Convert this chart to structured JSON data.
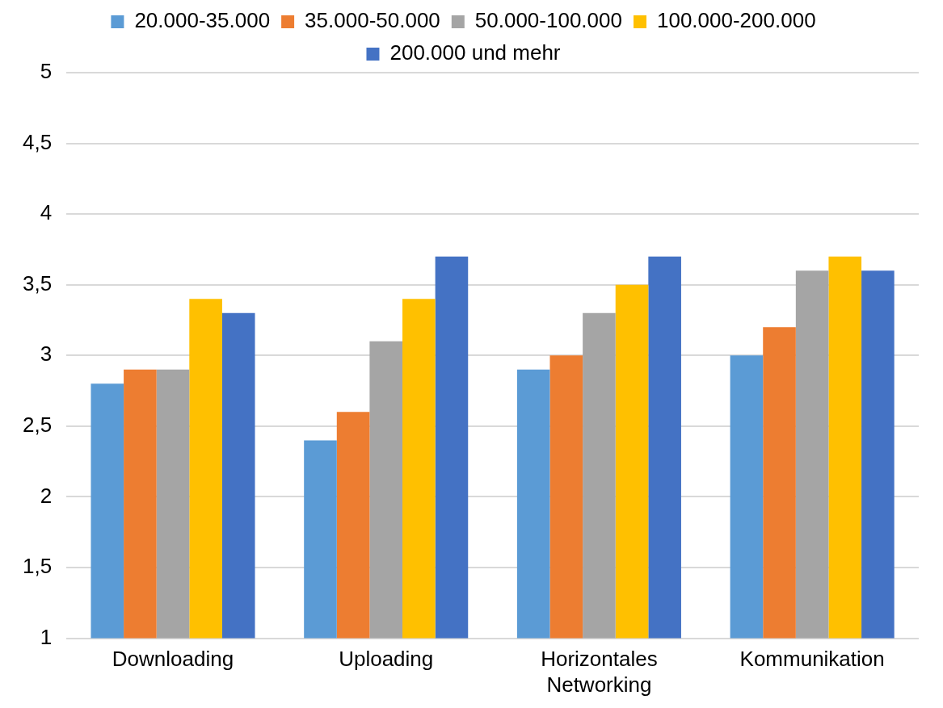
{
  "chart_data": {
    "type": "bar",
    "categories": [
      "Downloading",
      "Uploading",
      "Horizontales Networking",
      "Kommunikation"
    ],
    "series": [
      {
        "name": "20.000-35.000",
        "color": "#5b9bd5",
        "values": [
          2.8,
          2.4,
          2.9,
          3.0
        ]
      },
      {
        "name": "35.000-50.000",
        "color": "#ed7d31",
        "values": [
          2.9,
          2.6,
          3.0,
          3.2
        ]
      },
      {
        "name": "50.000-100.000",
        "color": "#a5a5a5",
        "values": [
          2.9,
          3.1,
          3.3,
          3.6
        ]
      },
      {
        "name": "100.000-200.000",
        "color": "#ffc000",
        "values": [
          3.4,
          3.4,
          3.5,
          3.7
        ]
      },
      {
        "name": "200.000 und mehr",
        "color": "#4472c4",
        "values": [
          3.3,
          3.7,
          3.7,
          3.6
        ]
      }
    ],
    "ylim": [
      1,
      5
    ],
    "yticks": [
      1,
      {
        "value": 1.5,
        "label": "1,5"
      },
      2,
      {
        "value": 2.5,
        "label": "2,5"
      },
      3,
      {
        "value": 3.5,
        "label": "3,5"
      },
      4,
      {
        "value": 4.5,
        "label": "4,5"
      },
      5
    ],
    "grid": "y",
    "legend": "top"
  }
}
